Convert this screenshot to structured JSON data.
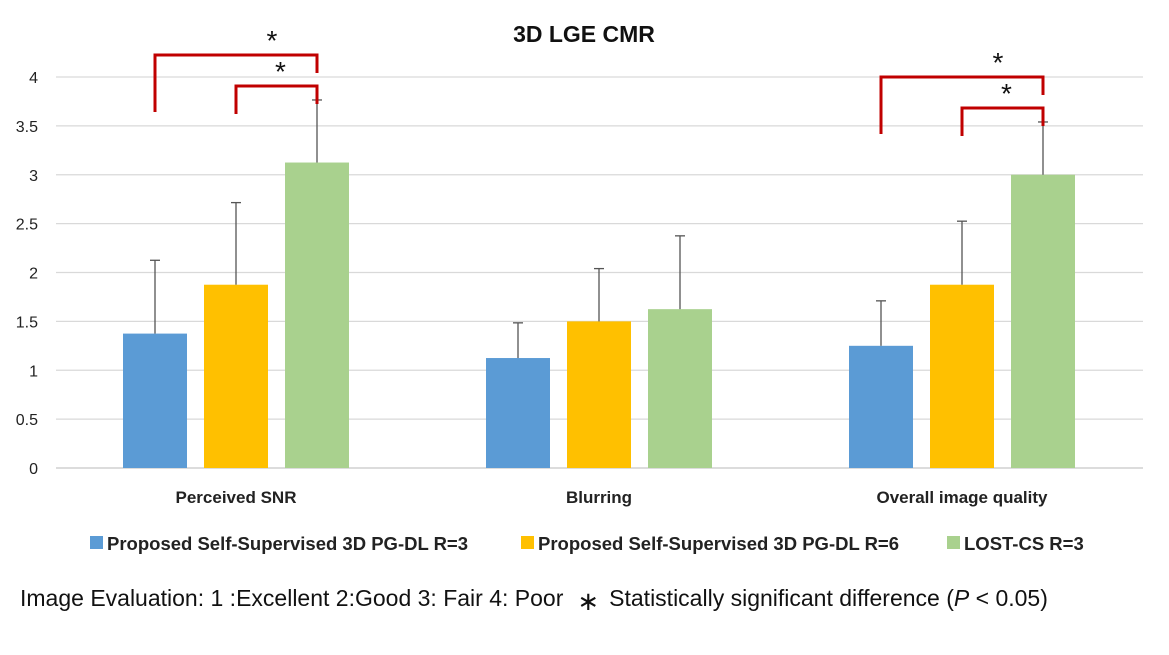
{
  "chart_data": {
    "type": "bar",
    "title": "3D LGE CMR",
    "categories": [
      "Perceived SNR",
      "Blurring",
      "Overall image quality"
    ],
    "series": [
      {
        "name": "Proposed Self-Supervised 3D PG-DL R=3",
        "color": "#5B9BD5",
        "values": [
          1.375,
          1.125,
          1.25
        ],
        "errors": [
          0.75,
          0.36,
          0.46
        ]
      },
      {
        "name": "Proposed Self-Supervised 3D PG-DL R=6",
        "color": "#FFC000",
        "values": [
          1.875,
          1.5,
          1.875
        ],
        "errors": [
          0.84,
          0.54,
          0.65
        ]
      },
      {
        "name": "LOST-CS R=3",
        "color": "#A9D18E",
        "values": [
          3.125,
          1.625,
          3.0
        ],
        "errors": [
          0.64,
          0.75,
          0.54
        ]
      }
    ],
    "ylim": [
      0,
      4
    ],
    "yticks": [
      "0",
      "0.5",
      "1",
      "1.5",
      "2",
      "2.5",
      "3",
      "3.5",
      "4"
    ],
    "grid": true,
    "legend_position": "bottom",
    "significance_brackets": [
      {
        "category": "Perceived SNR",
        "from_series": 0,
        "to_series": 2,
        "label": "*"
      },
      {
        "category": "Perceived SNR",
        "from_series": 1,
        "to_series": 2,
        "label": "*"
      },
      {
        "category": "Overall image quality",
        "from_series": 0,
        "to_series": 2,
        "label": "*"
      },
      {
        "category": "Overall image quality",
        "from_series": 1,
        "to_series": 2,
        "label": "*"
      }
    ],
    "bracket_color": "#C00000"
  },
  "footnote": {
    "scale_text": "Image Evaluation: 1 :Excellent 2:Good 3: Fair  4: Poor",
    "star": "∗",
    "significance_prefix": "Statistically significant difference (",
    "p_symbol": "P",
    "significance_suffix": " < 0.05)"
  }
}
